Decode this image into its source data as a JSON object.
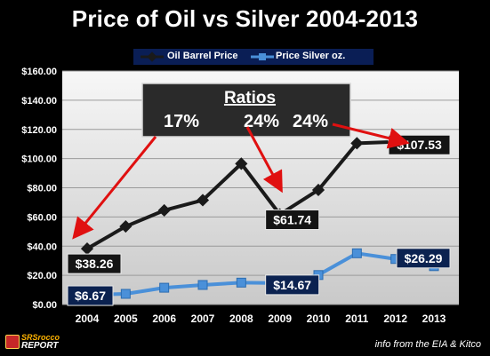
{
  "title": "Price of Oil vs Silver 2004-2013",
  "credit": "info from the EIA & Kitco",
  "logo": {
    "line1": "SRSrocco",
    "line2": "REPORT"
  },
  "colors": {
    "oil_line": "#1a1a1a",
    "silver_line": "#4a90d9",
    "plot_bg_top": "#f7f7f7",
    "plot_bg_bottom": "#c9c9c9",
    "callout_bg": "#0b2250",
    "arrow": "#e01010"
  },
  "chart_data": {
    "type": "line",
    "title": "Price of Oil vs Silver 2004-2013",
    "categories": [
      "2004",
      "2005",
      "2006",
      "2007",
      "2008",
      "2009",
      "2010",
      "2011",
      "2012",
      "2013"
    ],
    "series": [
      {
        "name": "Oil Barrel Price",
        "values": [
          38.26,
          53.5,
          64.5,
          71.5,
          96.5,
          61.74,
          78.5,
          110.5,
          111.5,
          107.53
        ]
      },
      {
        "name": "Price Silver oz.",
        "values": [
          6.67,
          7.3,
          11.5,
          13.4,
          15.0,
          14.67,
          20.2,
          35.1,
          31.2,
          26.29
        ]
      }
    ],
    "ylim": [
      0,
      160
    ],
    "yticks": [
      "$0.00",
      "$20.00",
      "$40.00",
      "$60.00",
      "$80.00",
      "$100.00",
      "$120.00",
      "$140.00",
      "$160.00"
    ],
    "legend_position": "top",
    "grid": true,
    "labels": [
      {
        "text": "$38.26",
        "series": 0,
        "index": 0
      },
      {
        "text": "$61.74",
        "series": 0,
        "index": 5
      },
      {
        "text": "$107.53",
        "series": 0,
        "index": 9
      },
      {
        "text": "$6.67",
        "series": 1,
        "index": 0
      },
      {
        "text": "$14.67",
        "series": 1,
        "index": 5
      },
      {
        "text": "$26.29",
        "series": 1,
        "index": 9
      }
    ],
    "ratios": {
      "heading": "Ratios",
      "values": [
        "17%",
        "24%",
        "24%"
      ]
    }
  }
}
